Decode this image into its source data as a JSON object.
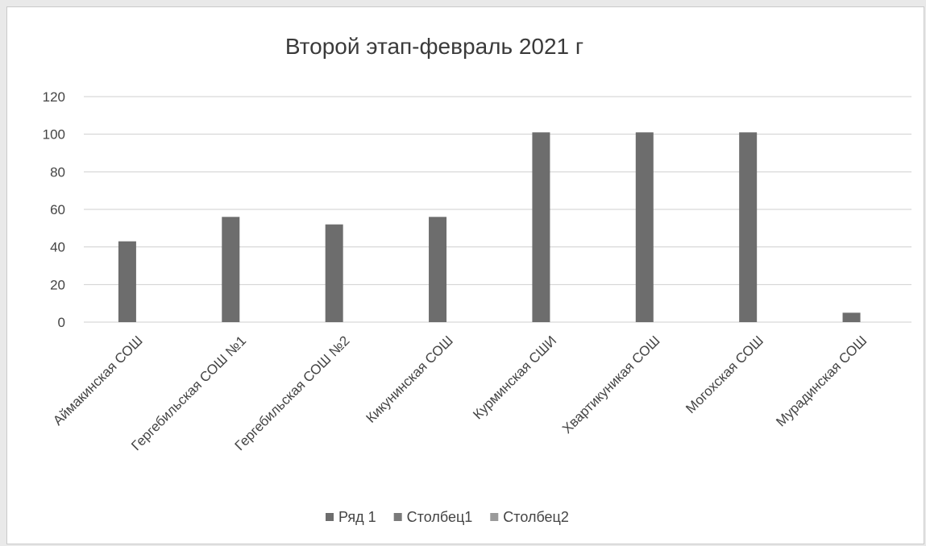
{
  "chart_data": {
    "type": "bar",
    "title": "Второй этап-февраль 2021 г",
    "categories": [
      "Аймакинская СОШ",
      "Гергебильская СОШ №1",
      "Гергебильская СОШ №2",
      "Кикунинская СОШ",
      "Курминская СШИ",
      "Хвартикуникая СОШ",
      "Могохская СОШ",
      "Мурадинская СОШ"
    ],
    "series": [
      {
        "name": "Ряд 1",
        "values": [
          43,
          56,
          52,
          56,
          101,
          101,
          101,
          5
        ],
        "color": "#6d6d6d"
      },
      {
        "name": "Столбец1",
        "values": [
          0,
          0,
          0,
          0,
          0,
          0,
          0,
          0
        ],
        "color": "#7a7a7a"
      },
      {
        "name": "Столбец2",
        "values": [
          0,
          0,
          0,
          0,
          0,
          0,
          0,
          0
        ],
        "color": "#9a9a9a"
      }
    ],
    "ylim": [
      0,
      120
    ],
    "yticks": [
      0,
      20,
      40,
      60,
      80,
      100,
      120
    ],
    "grid": true,
    "legend_position": "bottom"
  }
}
